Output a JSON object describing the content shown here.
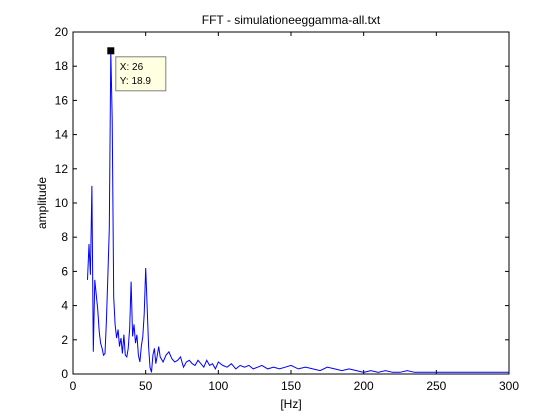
{
  "chart_data": {
    "type": "line",
    "title": "FFT - simulationeeggamma-all.txt",
    "xlabel": "[Hz]",
    "ylabel": "amplitude",
    "xlim": [
      0,
      300
    ],
    "ylim": [
      0,
      20
    ],
    "xticks": [
      0,
      50,
      100,
      150,
      200,
      250,
      300
    ],
    "yticks": [
      0,
      2,
      4,
      6,
      8,
      10,
      12,
      14,
      16,
      18,
      20
    ],
    "grid": false,
    "line_color": "#0000ff",
    "series": [
      {
        "x": [
          10,
          11,
          12,
          13,
          14,
          15,
          16,
          17,
          18,
          19,
          20,
          21,
          22,
          23,
          24,
          25,
          26,
          27,
          28,
          29,
          30,
          31,
          32,
          33,
          34,
          35,
          36,
          37,
          38,
          39,
          40,
          41,
          42,
          43,
          44,
          45,
          46,
          47,
          48,
          49,
          50,
          51,
          52,
          53,
          54,
          55,
          56,
          57,
          58,
          59,
          60,
          62,
          64,
          66,
          68,
          70,
          72,
          74,
          76,
          78,
          80,
          82,
          84,
          86,
          88,
          90,
          92,
          94,
          96,
          98,
          100,
          103,
          106,
          109,
          112,
          115,
          118,
          121,
          124,
          127,
          130,
          134,
          138,
          142,
          146,
          150,
          155,
          160,
          165,
          170,
          175,
          180,
          185,
          190,
          195,
          200,
          205,
          210,
          215,
          220,
          225,
          230,
          235,
          240,
          245,
          250,
          260,
          270,
          280,
          290,
          300
        ],
        "y": [
          5.5,
          7.6,
          5.8,
          11.0,
          1.3,
          5.5,
          4.6,
          3.8,
          2.5,
          1.8,
          1.5,
          1.1,
          1.2,
          3.1,
          5.8,
          8.5,
          18.9,
          14.9,
          4.5,
          2.9,
          2.1,
          2.6,
          1.6,
          2.1,
          1.2,
          2.3,
          1.1,
          1.0,
          1.5,
          2.7,
          5.4,
          2.2,
          2.9,
          1.8,
          2.3,
          1.1,
          0.7,
          1.6,
          2.2,
          3.5,
          6.2,
          4.0,
          1.6,
          0.4,
          0.1,
          1.1,
          1.5,
          0.6,
          1.1,
          1.6,
          1.0,
          0.7,
          1.1,
          1.3,
          0.9,
          0.7,
          0.8,
          1.0,
          0.4,
          0.7,
          0.8,
          0.6,
          0.5,
          0.8,
          0.6,
          0.4,
          0.8,
          0.5,
          0.6,
          0.3,
          0.7,
          0.5,
          0.4,
          0.6,
          0.3,
          0.5,
          0.4,
          0.5,
          0.3,
          0.4,
          0.5,
          0.3,
          0.4,
          0.3,
          0.4,
          0.5,
          0.3,
          0.4,
          0.3,
          0.2,
          0.4,
          0.3,
          0.2,
          0.3,
          0.2,
          0.1,
          0.2,
          0.1,
          0.2,
          0.1,
          0.1,
          0.2,
          0.1,
          0.1,
          0.1,
          0.1,
          0.1,
          0.1,
          0.1,
          0.1,
          0.1
        ]
      }
    ],
    "datatip": {
      "x_value": 26,
      "y_value": 18.9,
      "x_text": "X: 26",
      "y_text": "Y: 18.9",
      "marker_color": "#000000",
      "box_color": "#ffffe1"
    }
  }
}
